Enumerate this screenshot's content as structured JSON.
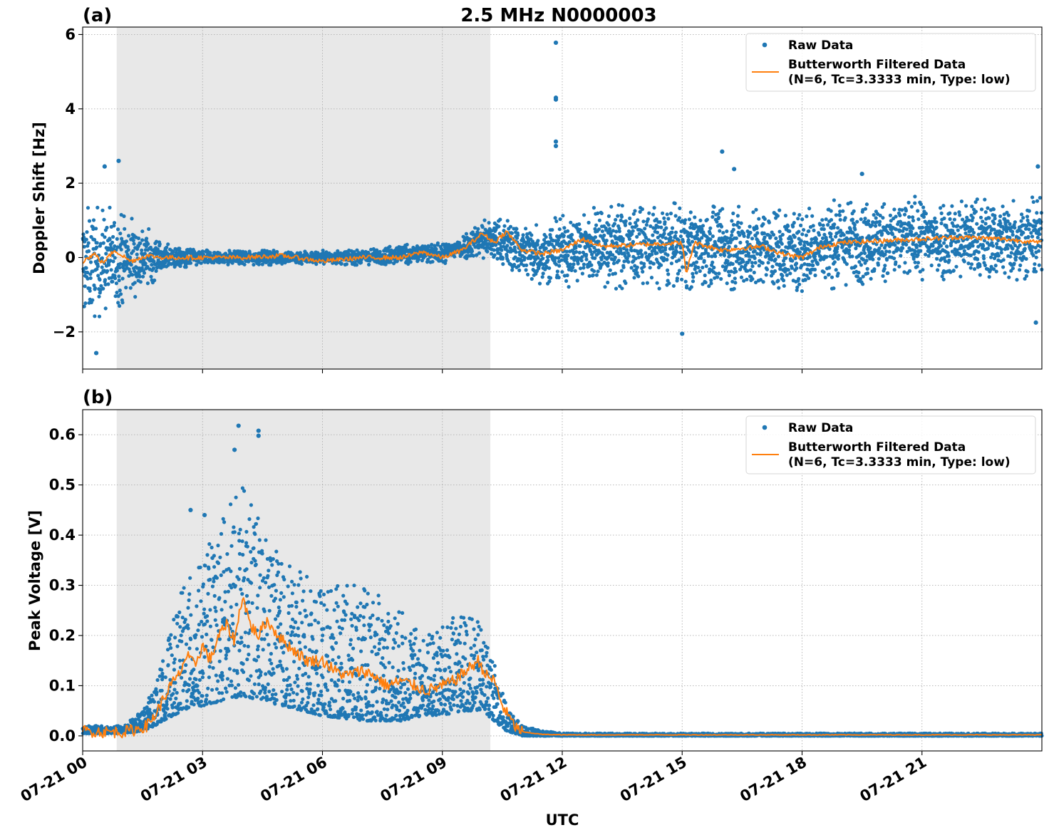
{
  "figure": {
    "title": "2.5 MHz N0000003",
    "xlabel": "UTC",
    "x_tick_labels": [
      "07-21 00",
      "07-21 03",
      "07-21 06",
      "07-21 09",
      "07-21 12",
      "07-21 15",
      "07-21 18",
      "07-21 21"
    ],
    "colors": {
      "raw": "#1f77b4",
      "filtered": "#ff7f0e",
      "night_shade": "#e8e8e8"
    }
  },
  "chart_data": [
    {
      "type": "scatter",
      "panel_label": "(a)",
      "title": "2.5 MHz N0000003",
      "xlabel": "",
      "ylabel": "Doppler Shift [Hz]",
      "xlim_hours": [
        0,
        24
      ],
      "ylim": [
        -3,
        6.2
      ],
      "yticks": [
        -2,
        0,
        2,
        4,
        6
      ],
      "ytick_labels": [
        "−2",
        "0",
        "2",
        "4",
        "6"
      ],
      "shaded_interval_hours": [
        0.85,
        10.2
      ],
      "grid": true,
      "legend": {
        "position": "top-right",
        "raw_label": "Raw Data",
        "filtered_label_line1": "Butterworth Filtered Data",
        "filtered_label_line2": "(N=6, Tc=3.3333 min, Type: low)"
      },
      "envelope": {
        "hours": [
          0,
          0.5,
          1,
          1.5,
          2,
          3,
          5,
          7,
          8,
          9,
          9.5,
          10,
          10.5,
          11,
          11.5,
          12,
          13,
          15,
          17,
          18,
          19,
          21,
          24
        ],
        "center": [
          -0.2,
          -0.1,
          0.0,
          0.0,
          0.0,
          0.0,
          0.0,
          0.0,
          0.1,
          0.1,
          0.3,
          0.5,
          0.4,
          0.2,
          0.1,
          0.2,
          0.3,
          0.3,
          0.2,
          0.2,
          0.4,
          0.5,
          0.5
        ],
        "spread": [
          1.6,
          1.5,
          1.3,
          1.0,
          0.4,
          0.2,
          0.2,
          0.2,
          0.3,
          0.3,
          0.35,
          0.6,
          0.7,
          0.8,
          0.9,
          1.0,
          1.2,
          1.2,
          1.2,
          1.2,
          1.2,
          1.2,
          1.2
        ]
      },
      "outliers": [
        {
          "x": 11.84,
          "y": 5.78
        },
        {
          "x": 11.84,
          "y": 4.3
        },
        {
          "x": 11.84,
          "y": 4.25
        },
        {
          "x": 11.84,
          "y": 3.12
        },
        {
          "x": 11.84,
          "y": 3.0
        },
        {
          "x": 0.34,
          "y": -2.57
        },
        {
          "x": 0.9,
          "y": 2.6
        },
        {
          "x": 0.55,
          "y": 2.45
        },
        {
          "x": 15.0,
          "y": -2.05
        },
        {
          "x": 16.0,
          "y": 2.85
        },
        {
          "x": 16.3,
          "y": 2.38
        },
        {
          "x": 19.5,
          "y": 2.25
        },
        {
          "x": 23.9,
          "y": 2.45
        },
        {
          "x": 23.85,
          "y": -1.75
        }
      ],
      "filtered_series": {
        "hours": [
          0,
          0.3,
          0.5,
          0.8,
          1.2,
          1.6,
          2,
          3,
          4,
          5,
          6,
          7,
          8,
          8.5,
          9,
          9.5,
          10,
          10.3,
          10.6,
          11,
          11.5,
          12,
          12.5,
          13,
          14,
          15,
          15.1,
          15.3,
          16,
          17,
          17.5,
          18,
          18.5,
          19,
          20,
          21,
          22,
          23,
          24
        ],
        "values": [
          -0.1,
          0.1,
          -0.15,
          0.2,
          -0.1,
          0.05,
          0.0,
          0.0,
          0.0,
          0.05,
          -0.1,
          0.0,
          0.0,
          0.15,
          0.0,
          0.2,
          0.65,
          0.4,
          0.7,
          0.2,
          0.1,
          0.2,
          0.5,
          0.3,
          0.35,
          0.4,
          -0.45,
          0.4,
          0.2,
          0.3,
          0.1,
          0.0,
          0.3,
          0.4,
          0.45,
          0.5,
          0.55,
          0.5,
          0.4
        ]
      }
    },
    {
      "type": "scatter",
      "panel_label": "(b)",
      "title": "",
      "xlabel": "UTC",
      "ylabel": "Peak Voltage [V]",
      "xlim_hours": [
        0,
        24
      ],
      "ylim": [
        -0.03,
        0.65
      ],
      "yticks": [
        0.0,
        0.1,
        0.2,
        0.3,
        0.4,
        0.5,
        0.6
      ],
      "ytick_labels": [
        "0.0",
        "0.1",
        "0.2",
        "0.3",
        "0.4",
        "0.5",
        "0.6"
      ],
      "shaded_interval_hours": [
        0.85,
        10.2
      ],
      "grid": true,
      "legend": {
        "position": "top-right",
        "raw_label": "Raw Data",
        "filtered_label_line1": "Butterworth Filtered Data",
        "filtered_label_line2": "(N=6, Tc=3.3333 min, Type: low)"
      },
      "envelope": {
        "hours": [
          0,
          1,
          1.5,
          1.8,
          2,
          2.5,
          3,
          3.5,
          4,
          4.5,
          5,
          6,
          7,
          8,
          8.5,
          9,
          9.5,
          10,
          10.3,
          10.6,
          11,
          11.5,
          12,
          24
        ],
        "low": [
          0.005,
          0.005,
          0.01,
          0.02,
          0.03,
          0.05,
          0.06,
          0.07,
          0.08,
          0.07,
          0.06,
          0.04,
          0.03,
          0.03,
          0.04,
          0.04,
          0.05,
          0.05,
          0.03,
          0.01,
          0.0,
          0.0,
          0.0,
          0.0
        ],
        "high": [
          0.02,
          0.02,
          0.05,
          0.1,
          0.15,
          0.3,
          0.35,
          0.45,
          0.5,
          0.42,
          0.35,
          0.3,
          0.3,
          0.25,
          0.2,
          0.22,
          0.25,
          0.22,
          0.15,
          0.06,
          0.02,
          0.01,
          0.005,
          0.005
        ]
      },
      "outliers": [
        {
          "x": 3.9,
          "y": 0.618
        },
        {
          "x": 4.4,
          "y": 0.608
        },
        {
          "x": 4.4,
          "y": 0.598
        },
        {
          "x": 3.8,
          "y": 0.57
        },
        {
          "x": 2.7,
          "y": 0.45
        },
        {
          "x": 3.05,
          "y": 0.44
        }
      ],
      "filtered_series": {
        "hours": [
          0,
          0.5,
          1,
          1.3,
          1.6,
          1.8,
          2,
          2.2,
          2.4,
          2.6,
          2.8,
          3,
          3.2,
          3.4,
          3.6,
          3.8,
          4,
          4.2,
          4.4,
          4.6,
          4.8,
          5,
          5.3,
          5.6,
          6,
          6.3,
          6.6,
          7,
          7.3,
          7.6,
          8,
          8.3,
          8.6,
          9,
          9.3,
          9.6,
          9.9,
          10.1,
          10.3,
          10.5,
          10.8,
          11,
          11.5,
          12,
          24
        ],
        "values": [
          0.01,
          0.008,
          0.008,
          0.012,
          0.02,
          0.04,
          0.07,
          0.1,
          0.12,
          0.16,
          0.14,
          0.18,
          0.15,
          0.2,
          0.22,
          0.19,
          0.28,
          0.22,
          0.2,
          0.23,
          0.21,
          0.19,
          0.17,
          0.15,
          0.15,
          0.13,
          0.12,
          0.13,
          0.12,
          0.1,
          0.11,
          0.1,
          0.09,
          0.1,
          0.11,
          0.13,
          0.15,
          0.12,
          0.11,
          0.06,
          0.02,
          0.008,
          0.003,
          0.002,
          0.002
        ]
      }
    }
  ]
}
